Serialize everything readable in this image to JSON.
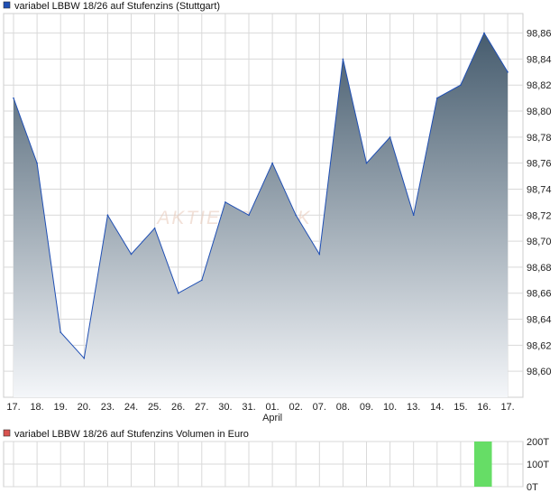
{
  "colors": {
    "price_line": "#1f4fb4",
    "area_top": "#465c6e",
    "area_bottom": "#f4f6f9",
    "grid": "#d9d9d9",
    "legend_price_swatch": "#1f4fb4",
    "legend_volume_swatch": "#d9534f",
    "volume_bar": "#66dd66",
    "watermark": "#e8c8b8"
  },
  "watermark": "AKTIENCHECK",
  "chart_data": [
    {
      "type": "area",
      "legend": "variabel LBBW 18/26 auf Stufenzins (Stuttgart)",
      "categories": [
        "17.",
        "18.",
        "19.",
        "20.",
        "23.",
        "24.",
        "25.",
        "26.",
        "27.",
        "30.",
        "31.",
        "01.",
        "02.",
        "07.",
        "08.",
        "09.",
        "10.",
        "13.",
        "14.",
        "15.",
        "16.",
        "17."
      ],
      "month_label": "April",
      "month_label_index": 11,
      "values": [
        98.81,
        98.76,
        98.63,
        98.61,
        98.72,
        98.69,
        98.71,
        98.66,
        98.67,
        98.73,
        98.72,
        98.76,
        98.72,
        98.69,
        98.84,
        98.76,
        98.78,
        98.72,
        98.81,
        98.82,
        98.86,
        98.83
      ],
      "ylim": [
        98.58,
        98.875
      ],
      "yticks": [
        98.6,
        98.62,
        98.64,
        98.66,
        98.68,
        98.7,
        98.72,
        98.74,
        98.76,
        98.78,
        98.8,
        98.82,
        98.84,
        98.86
      ],
      "ytick_labels": [
        "98,60",
        "98,62",
        "98,64",
        "98,66",
        "98,68",
        "98,70",
        "98,72",
        "98,74",
        "98,76",
        "98,78",
        "98,80",
        "98,82",
        "98,84",
        "98,86"
      ],
      "grid": true
    },
    {
      "type": "bar",
      "legend": "variabel LBBW 18/26 auf Stufenzins Volumen in Euro",
      "categories": [
        "17.",
        "18.",
        "19.",
        "20.",
        "23.",
        "24.",
        "25.",
        "26.",
        "27.",
        "30.",
        "31.",
        "01.",
        "02.",
        "07.",
        "08.",
        "09.",
        "10.",
        "13.",
        "14.",
        "15.",
        "16.",
        "17."
      ],
      "values": [
        0,
        0,
        0,
        0,
        0,
        0,
        0,
        0,
        0,
        0,
        0,
        0,
        0,
        0,
        0,
        0,
        0,
        0,
        0,
        0,
        200000,
        0
      ],
      "ylim": [
        0,
        200000
      ],
      "yticks": [
        0,
        100000,
        200000
      ],
      "ytick_labels": [
        "0T",
        "100T",
        "200T"
      ],
      "grid": true
    }
  ]
}
